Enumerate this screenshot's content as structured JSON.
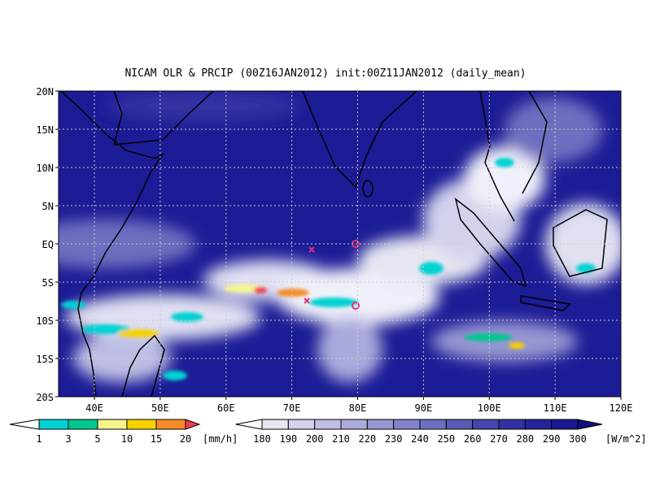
{
  "title": "NICAM OLR & PRCIP (00Z16JAN2012) init:00Z11JAN2012 (daily_mean)",
  "lat_labels": [
    "20N",
    "15N",
    "10N",
    "5N",
    "EQ",
    "5S",
    "10S",
    "15S",
    "20S"
  ],
  "lon_labels": [
    "40E",
    "50E",
    "60E",
    "70E",
    "80E",
    "90E",
    "100E",
    "110E",
    "120E"
  ],
  "precip_colorbar": {
    "labels": [
      1,
      3,
      5,
      10,
      15,
      20
    ],
    "unit": "[mm/h]",
    "colors": [
      "#ffffff",
      "#00d2d2",
      "#00c88c",
      "#f5f58c",
      "#f5d200",
      "#f58c28",
      "#f03c50"
    ]
  },
  "olr_colorbar": {
    "labels": [
      180,
      190,
      200,
      210,
      220,
      230,
      240,
      250,
      260,
      270,
      280,
      290,
      300
    ],
    "unit": "[W/m^2]",
    "colors": [
      "#ffffff",
      "#e6e6f3",
      "#d2d2ec",
      "#bebee4",
      "#aaaadc",
      "#9696d2",
      "#8282ca",
      "#6e6ec0",
      "#5a5ab6",
      "#4646ac",
      "#3232a2",
      "#24249a",
      "#181890",
      "#10107a"
    ]
  }
}
